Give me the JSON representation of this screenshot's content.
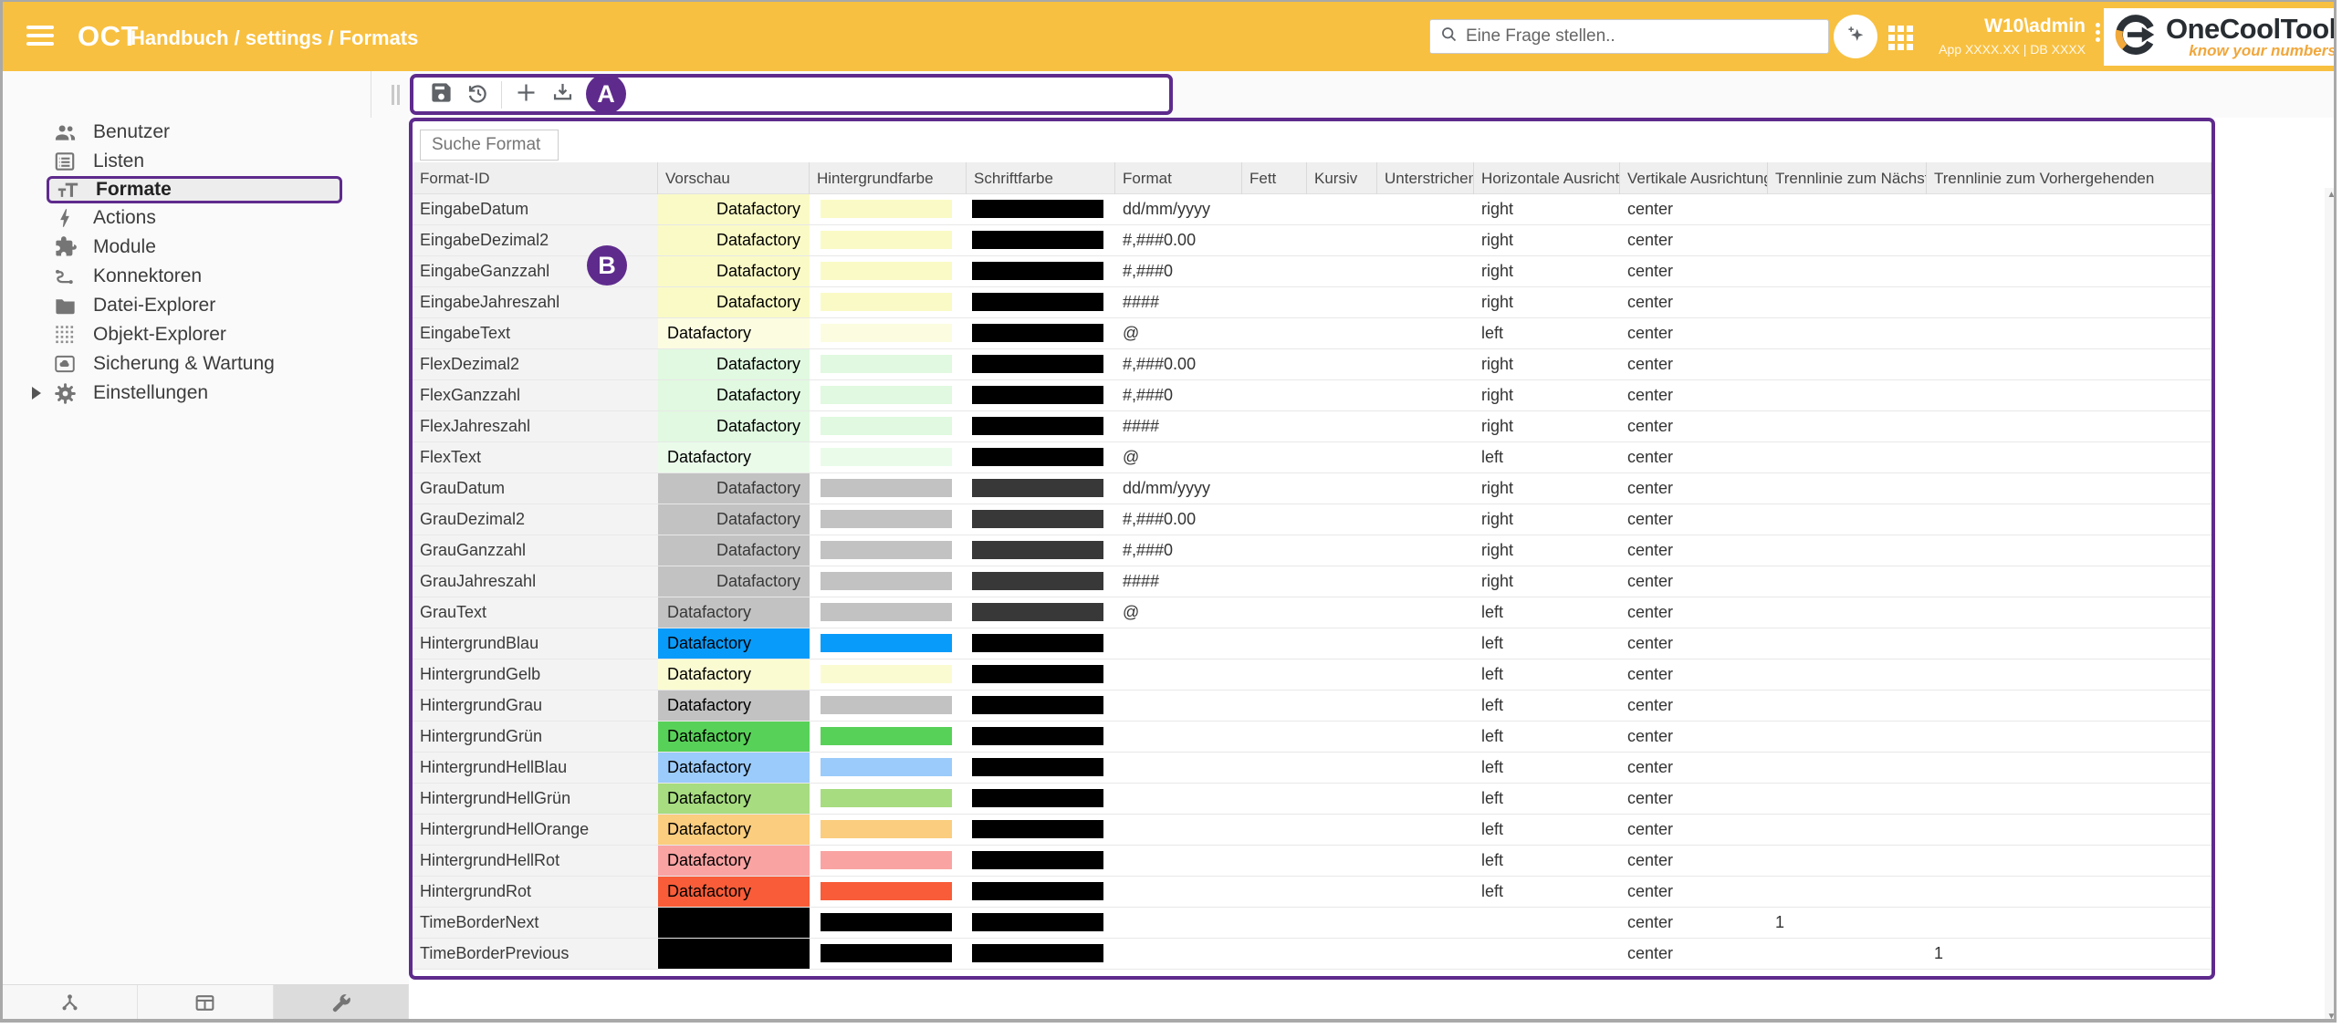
{
  "appbar": {
    "title": "OCT",
    "breadcrumb": "Handbuch / settings / Formats",
    "search_placeholder": "Eine Frage stellen..",
    "user": "W10\\admin",
    "app_info": "App XXXX.XX | DB XXXX",
    "brand": {
      "name": "OneCoolTool",
      "tagline": "know your numbers"
    },
    "icons": [
      "hamburger-icon",
      "search-icon",
      "sparkle-icon",
      "app-grid-icon",
      "kebab-menu-icon",
      "brand-logo"
    ]
  },
  "toolbar": {
    "annotation": "A",
    "buttons": [
      {
        "name": "save-button",
        "icon": "save-icon"
      },
      {
        "name": "history-button",
        "icon": "history-icon"
      },
      {
        "name": "add-button",
        "icon": "plus-icon"
      },
      {
        "name": "download-button",
        "icon": "download-icon"
      }
    ]
  },
  "sidebar": {
    "selected": "Formate",
    "items": [
      {
        "label": "Benutzer",
        "icon": "users-icon"
      },
      {
        "label": "Listen",
        "icon": "list-icon"
      },
      {
        "label": "Formate",
        "icon": "text-format-icon",
        "selected": true
      },
      {
        "label": "Actions",
        "icon": "bolt-icon"
      },
      {
        "label": "Module",
        "icon": "puzzle-icon"
      },
      {
        "label": "Konnektoren",
        "icon": "connector-icon"
      },
      {
        "label": "Datei-Explorer",
        "icon": "folder-icon"
      },
      {
        "label": "Objekt-Explorer",
        "icon": "dot-grid-icon"
      },
      {
        "label": "Sicherung & Wartung",
        "icon": "cloud-box-icon"
      },
      {
        "label": "Einstellungen",
        "icon": "gear-icon",
        "expandable": true
      }
    ]
  },
  "table": {
    "annotation": "B",
    "search_label": "Suche Format",
    "columns": [
      "Format-ID",
      "Vorschau",
      "Hintergrundfarbe",
      "Schriftfarbe",
      "Format",
      "Fett",
      "Kursiv",
      "Unterstrichen",
      "Horizontale Ausrichtung",
      "Vertikale Ausrichtung",
      "Trennlinie zum Nächsten",
      "Trennlinie zum Vorhergehenden"
    ],
    "preview_text": "Datafactory",
    "rows": [
      {
        "id": "EingabeDatum",
        "preview": "Datafactory",
        "bg": "#FAFAC6",
        "font": "#000000",
        "format": "dd/mm/yyyy",
        "bold": "",
        "italic": "",
        "underline": "",
        "halign": "right",
        "valign": "center",
        "sep_next": "",
        "sep_prev": ""
      },
      {
        "id": "EingabeDezimal2",
        "preview": "Datafactory",
        "bg": "#FAFAC6",
        "font": "#000000",
        "format": "#,###0.00",
        "bold": "",
        "italic": "",
        "underline": "",
        "halign": "right",
        "valign": "center",
        "sep_next": "",
        "sep_prev": ""
      },
      {
        "id": "EingabeGanzzahl",
        "preview": "Datafactory",
        "bg": "#FAFAC6",
        "font": "#000000",
        "format": "#,###0",
        "bold": "",
        "italic": "",
        "underline": "",
        "halign": "right",
        "valign": "center",
        "sep_next": "",
        "sep_prev": ""
      },
      {
        "id": "EingabeJahreszahl",
        "preview": "Datafactory",
        "bg": "#FAFAC6",
        "font": "#000000",
        "format": "####",
        "bold": "",
        "italic": "",
        "underline": "",
        "halign": "right",
        "valign": "center",
        "sep_next": "",
        "sep_prev": ""
      },
      {
        "id": "EingabeText",
        "preview": "Datafactory",
        "bg": "#FCFCE1",
        "font": "#000000",
        "format": "@",
        "bold": "",
        "italic": "",
        "underline": "",
        "halign": "left",
        "valign": "center",
        "sep_next": "",
        "sep_prev": ""
      },
      {
        "id": "FlexDezimal2",
        "preview": "Datafactory",
        "bg": "#E0F9E0",
        "font": "#000000",
        "format": "#,###0.00",
        "bold": "",
        "italic": "",
        "underline": "",
        "halign": "right",
        "valign": "center",
        "sep_next": "",
        "sep_prev": ""
      },
      {
        "id": "FlexGanzzahl",
        "preview": "Datafactory",
        "bg": "#E0F9E0",
        "font": "#000000",
        "format": "#,###0",
        "bold": "",
        "italic": "",
        "underline": "",
        "halign": "right",
        "valign": "center",
        "sep_next": "",
        "sep_prev": ""
      },
      {
        "id": "FlexJahreszahl",
        "preview": "Datafactory",
        "bg": "#E0F9E0",
        "font": "#000000",
        "format": "####",
        "bold": "",
        "italic": "",
        "underline": "",
        "halign": "right",
        "valign": "center",
        "sep_next": "",
        "sep_prev": ""
      },
      {
        "id": "FlexText",
        "preview": "Datafactory",
        "bg": "#EAFBEA",
        "font": "#000000",
        "format": "@",
        "bold": "",
        "italic": "",
        "underline": "",
        "halign": "left",
        "valign": "center",
        "sep_next": "",
        "sep_prev": ""
      },
      {
        "id": "GrauDatum",
        "preview": "Datafactory",
        "bg": "#C2C2C2",
        "font": "#383838",
        "format": "dd/mm/yyyy",
        "bold": "",
        "italic": "",
        "underline": "",
        "halign": "right",
        "valign": "center",
        "sep_next": "",
        "sep_prev": ""
      },
      {
        "id": "GrauDezimal2",
        "preview": "Datafactory",
        "bg": "#C2C2C2",
        "font": "#383838",
        "format": "#,###0.00",
        "bold": "",
        "italic": "",
        "underline": "",
        "halign": "right",
        "valign": "center",
        "sep_next": "",
        "sep_prev": ""
      },
      {
        "id": "GrauGanzzahl",
        "preview": "Datafactory",
        "bg": "#C2C2C2",
        "font": "#383838",
        "format": "#,###0",
        "bold": "",
        "italic": "",
        "underline": "",
        "halign": "right",
        "valign": "center",
        "sep_next": "",
        "sep_prev": ""
      },
      {
        "id": "GrauJahreszahl",
        "preview": "Datafactory",
        "bg": "#C2C2C2",
        "font": "#383838",
        "format": "####",
        "bold": "",
        "italic": "",
        "underline": "",
        "halign": "right",
        "valign": "center",
        "sep_next": "",
        "sep_prev": ""
      },
      {
        "id": "GrauText",
        "preview": "Datafactory",
        "bg": "#C2C2C2",
        "font": "#383838",
        "format": "@",
        "bold": "",
        "italic": "",
        "underline": "",
        "halign": "left",
        "valign": "center",
        "sep_next": "",
        "sep_prev": ""
      },
      {
        "id": "HintergrundBlau",
        "preview": "Datafactory",
        "bg": "#089BFA",
        "font": "#000000",
        "format": "",
        "bold": "",
        "italic": "",
        "underline": "",
        "halign": "left",
        "valign": "center",
        "sep_next": "",
        "sep_prev": ""
      },
      {
        "id": "HintergrundGelb",
        "preview": "Datafactory",
        "bg": "#FBFBD2",
        "font": "#000000",
        "format": "",
        "bold": "",
        "italic": "",
        "underline": "",
        "halign": "left",
        "valign": "center",
        "sep_next": "",
        "sep_prev": ""
      },
      {
        "id": "HintergrundGrau",
        "preview": "Datafactory",
        "bg": "#C2C2C2",
        "font": "#000000",
        "format": "",
        "bold": "",
        "italic": "",
        "underline": "",
        "halign": "left",
        "valign": "center",
        "sep_next": "",
        "sep_prev": ""
      },
      {
        "id": "HintergrundGrün",
        "preview": "Datafactory",
        "bg": "#58D158",
        "font": "#000000",
        "format": "",
        "bold": "",
        "italic": "",
        "underline": "",
        "halign": "left",
        "valign": "center",
        "sep_next": "",
        "sep_prev": ""
      },
      {
        "id": "HintergrundHellBlau",
        "preview": "Datafactory",
        "bg": "#9BCBFA",
        "font": "#000000",
        "format": "",
        "bold": "",
        "italic": "",
        "underline": "",
        "halign": "left",
        "valign": "center",
        "sep_next": "",
        "sep_prev": ""
      },
      {
        "id": "HintergrundHellGrün",
        "preview": "Datafactory",
        "bg": "#A7DC80",
        "font": "#000000",
        "format": "",
        "bold": "",
        "italic": "",
        "underline": "",
        "halign": "left",
        "valign": "center",
        "sep_next": "",
        "sep_prev": ""
      },
      {
        "id": "HintergrundHellOrange",
        "preview": "Datafactory",
        "bg": "#FBCD7E",
        "font": "#000000",
        "format": "",
        "bold": "",
        "italic": "",
        "underline": "",
        "halign": "left",
        "valign": "center",
        "sep_next": "",
        "sep_prev": ""
      },
      {
        "id": "HintergrundHellRot",
        "preview": "Datafactory",
        "bg": "#FAA3A3",
        "font": "#000000",
        "format": "",
        "bold": "",
        "italic": "",
        "underline": "",
        "halign": "left",
        "valign": "center",
        "sep_next": "",
        "sep_prev": ""
      },
      {
        "id": "HintergrundRot",
        "preview": "Datafactory",
        "bg": "#F95C38",
        "font": "#000000",
        "format": "",
        "bold": "",
        "italic": "",
        "underline": "",
        "halign": "left",
        "valign": "center",
        "sep_next": "",
        "sep_prev": ""
      },
      {
        "id": "TimeBorderNext",
        "preview": "",
        "bg": "#000000",
        "font": "#000000",
        "format": "",
        "bold": "",
        "italic": "",
        "underline": "",
        "halign": "",
        "valign": "center",
        "sep_next": "1",
        "sep_prev": ""
      },
      {
        "id": "TimeBorderPrevious",
        "preview": "",
        "bg": "#000000",
        "font": "#000000",
        "format": "",
        "bold": "",
        "italic": "",
        "underline": "",
        "halign": "",
        "valign": "center",
        "sep_next": "",
        "sep_prev": "1"
      }
    ]
  },
  "bottombar": {
    "tabs": [
      {
        "name": "tab-hierarchy",
        "icon": "sitemap-icon",
        "active": false
      },
      {
        "name": "tab-window",
        "icon": "window-icon",
        "active": false
      },
      {
        "name": "tab-tools",
        "icon": "wrench-icon",
        "active": true
      }
    ]
  },
  "scrollbar": {
    "up": "scroll-up-arrow",
    "down": "scroll-down-arrow"
  },
  "colors": {
    "appbar": "#F8C040",
    "annotation": "#5E2B8D",
    "header_bg": "#efefef",
    "active_tab_bg": "#dcdcdc",
    "tagline": "#F0A73C"
  }
}
